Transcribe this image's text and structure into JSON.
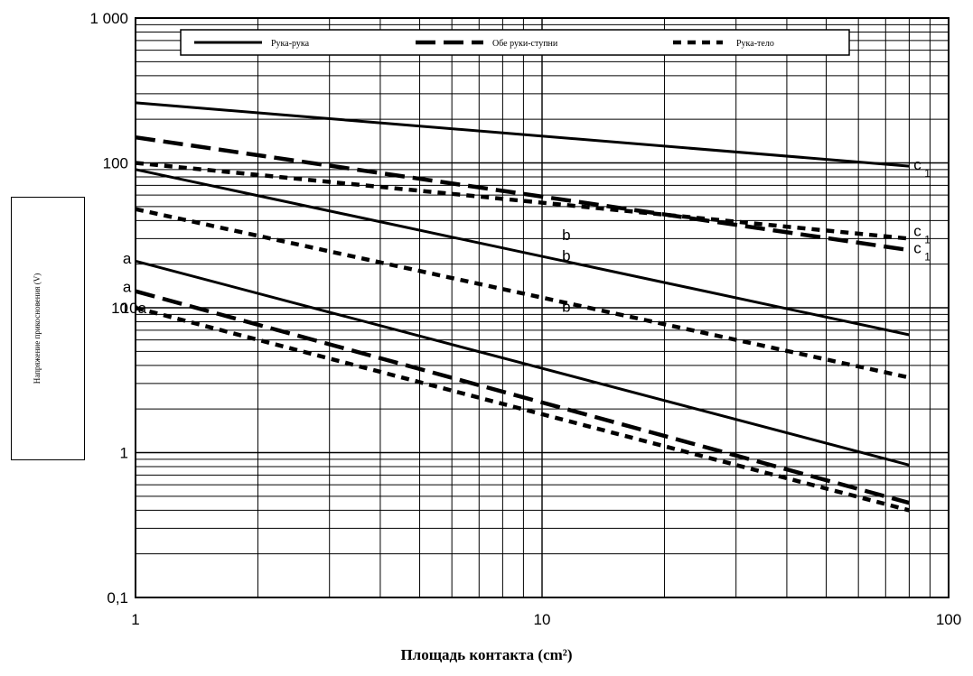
{
  "chart_data": {
    "type": "line",
    "xscale": "log",
    "yscale": "log",
    "xlim": [
      1,
      100
    ],
    "ylim": [
      0.1,
      1000
    ],
    "xticks": [
      {
        "value": 1,
        "label": "1"
      },
      {
        "value": 10,
        "label": "10"
      },
      {
        "value": 100,
        "label": "100"
      }
    ],
    "yticks": [
      {
        "value": 0.1,
        "label": "0,1"
      },
      {
        "value": 1,
        "label": "1"
      },
      {
        "value": 10,
        "label": "10"
      },
      {
        "value": 100,
        "label": "100"
      },
      {
        "value": 1000,
        "label": "1 000"
      }
    ],
    "xlabel": "Площадь контакта (cm²)",
    "ylabel": "Напряжение прикосновения (V)",
    "grid": true,
    "legend": {
      "placement": "top",
      "entries": [
        {
          "label": "Рука-рука",
          "style": "solid"
        },
        {
          "label": "Обе руки-ступни",
          "style": "dashed"
        },
        {
          "label": "Рука-тело",
          "style": "dotted"
        }
      ]
    },
    "series": [
      {
        "style": "solid",
        "label": "c",
        "x": [
          1,
          80
        ],
        "y": [
          260,
          95
        ]
      },
      {
        "style": "dashed",
        "label": "c1",
        "x": [
          1,
          80
        ],
        "y": [
          150,
          25
        ]
      },
      {
        "style": "dotted",
        "label": "c1",
        "x": [
          1,
          80
        ],
        "y": [
          100,
          30
        ]
      },
      {
        "style": "solid",
        "label": "b",
        "x": [
          1,
          80
        ],
        "y": [
          90,
          6.5
        ]
      },
      {
        "style": "dotted",
        "label": "b",
        "x": [
          1,
          80
        ],
        "y": [
          48,
          3.3
        ]
      },
      {
        "style": "solid",
        "label": "a",
        "x": [
          1,
          80
        ],
        "y": [
          21,
          0.82
        ]
      },
      {
        "style": "dashed",
        "label": "a",
        "x": [
          1,
          80
        ],
        "y": [
          13,
          0.45
        ]
      },
      {
        "style": "dotted",
        "label": "a",
        "x": [
          1,
          80
        ],
        "y": [
          10,
          0.4
        ]
      }
    ],
    "annotations": [
      {
        "text": "a",
        "x": 0.93,
        "y": 22
      },
      {
        "text": "a",
        "x": 0.93,
        "y": 14
      },
      {
        "text": "10a",
        "x": 0.92,
        "y": 10
      },
      {
        "text": "b",
        "x": 11.2,
        "y": 32
      },
      {
        "text": "b",
        "x": 11.2,
        "y": 23
      },
      {
        "text": "b",
        "x": 11.2,
        "y": 10.2
      },
      {
        "text": "c",
        "x": 82,
        "y": 98
      },
      {
        "text": "c",
        "x": 82,
        "y": 34
      },
      {
        "text": "c",
        "x": 82,
        "y": 26
      }
    ]
  },
  "colors": {
    "line": "#000000",
    "grid": "#000000",
    "background": "#ffffff"
  }
}
